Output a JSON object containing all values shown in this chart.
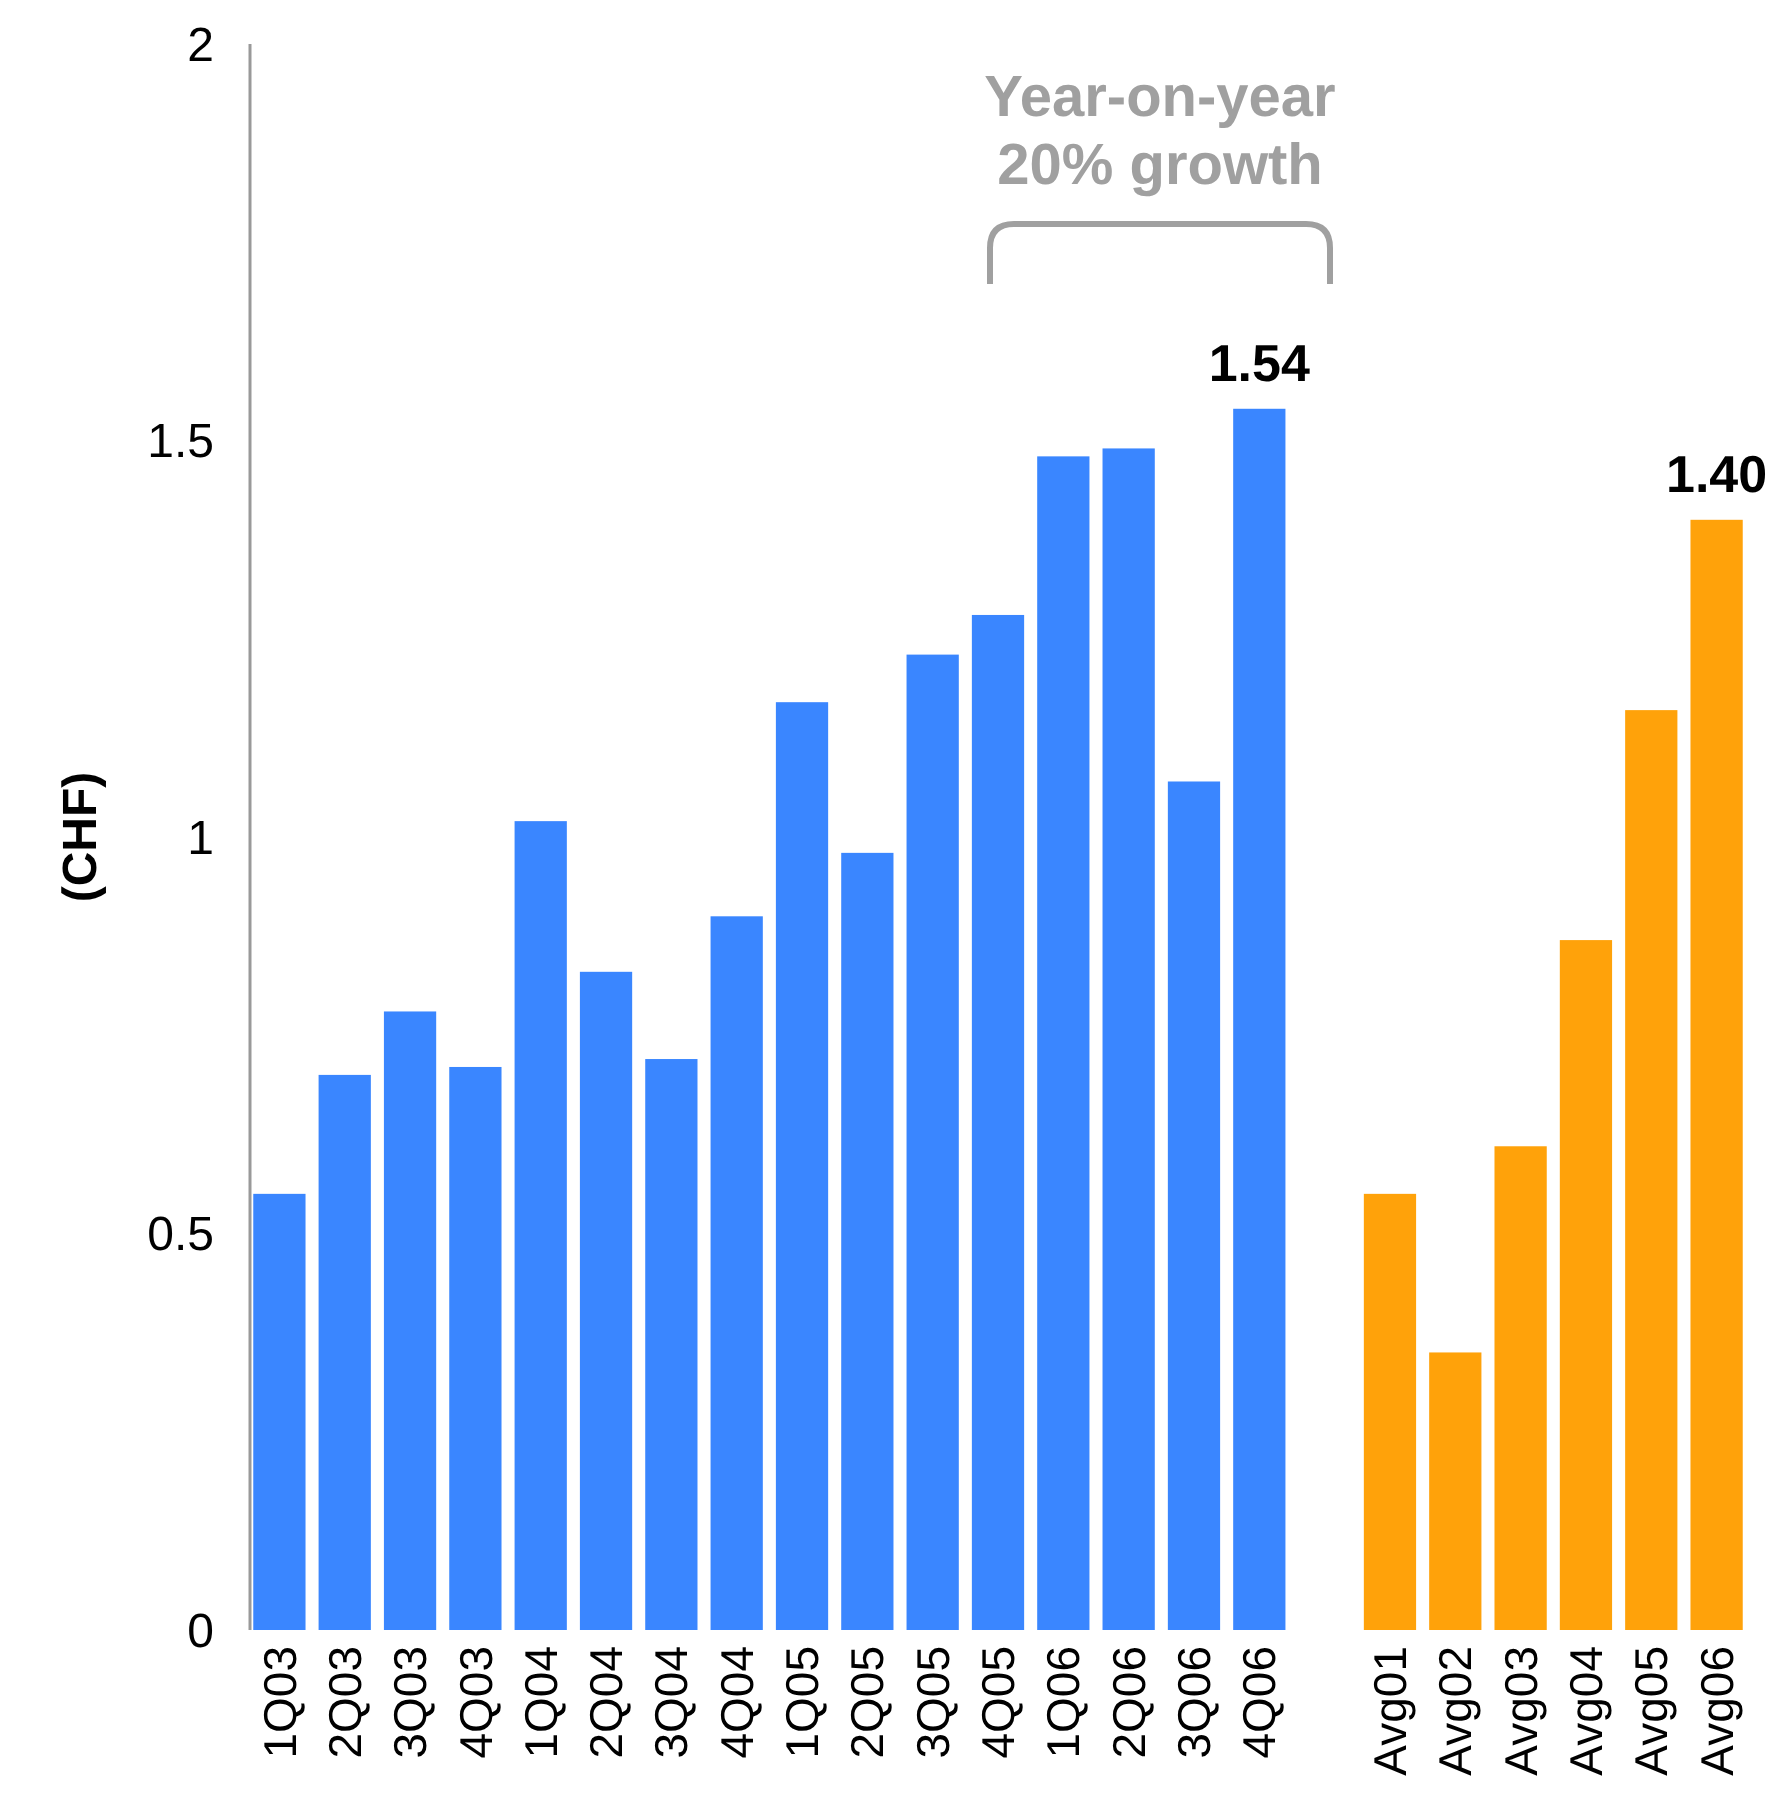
{
  "chart_data": {
    "type": "bar",
    "ylabel": "(CHF)",
    "categories": [
      "1Q03",
      "2Q03",
      "3Q03",
      "4Q03",
      "1Q04",
      "2Q04",
      "3Q04",
      "4Q04",
      "1Q05",
      "2Q05",
      "3Q05",
      "4Q05",
      "1Q06",
      "2Q06",
      "3Q06",
      "4Q06",
      null,
      "Avg01",
      "Avg02",
      "Avg03",
      "Avg04",
      "Avg05",
      "Avg06"
    ],
    "values": [
      0.55,
      0.7,
      0.78,
      0.71,
      1.02,
      0.83,
      0.72,
      0.9,
      1.17,
      0.98,
      1.23,
      1.28,
      1.48,
      1.49,
      1.07,
      1.54,
      null,
      0.55,
      0.35,
      0.61,
      0.87,
      1.16,
      1.4
    ],
    "colors": [
      "#3a86ff",
      "#3a86ff",
      "#3a86ff",
      "#3a86ff",
      "#3a86ff",
      "#3a86ff",
      "#3a86ff",
      "#3a86ff",
      "#3a86ff",
      "#3a86ff",
      "#3a86ff",
      "#3a86ff",
      "#3a86ff",
      "#3a86ff",
      "#3a86ff",
      "#3a86ff",
      null,
      "#ffa20a",
      "#ffa20a",
      "#ffa20a",
      "#ffa20a",
      "#ffa20a",
      "#ffa20a"
    ],
    "value_labels": [
      null,
      null,
      null,
      null,
      null,
      null,
      null,
      null,
      null,
      null,
      null,
      null,
      null,
      null,
      null,
      "1.54",
      null,
      null,
      null,
      null,
      null,
      null,
      "1.40"
    ],
    "ylim": [
      0,
      2
    ],
    "yticks": [
      0,
      0.5,
      1,
      1.5,
      2
    ],
    "grid": false,
    "annotations": [
      "Year-on-year 20% growth"
    ]
  }
}
